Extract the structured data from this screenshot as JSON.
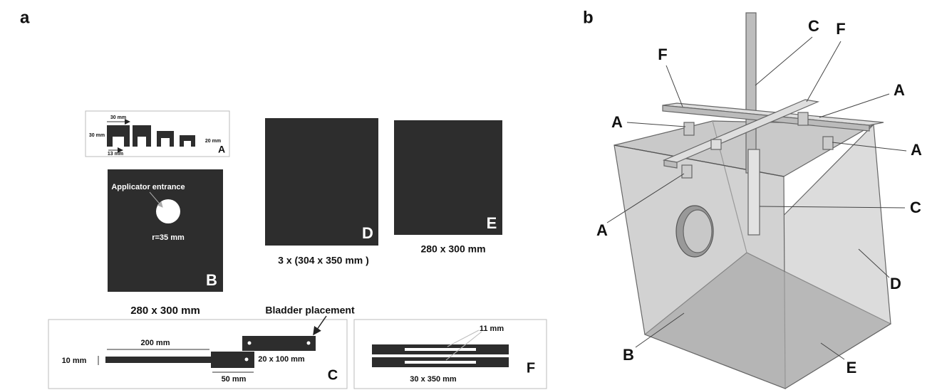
{
  "panel_a": {
    "label": "a",
    "part_a": {
      "dims": [
        "30 mm",
        "30 mm",
        "20 mm",
        "13 mm"
      ],
      "letter": "A"
    },
    "part_b": {
      "annotation": "Applicator entrance",
      "radius": "r=35 mm",
      "letter": "B",
      "size": "280 x 300 mm"
    },
    "part_d": {
      "letter": "D",
      "size": "3 x (304 x 350 mm )"
    },
    "part_e": {
      "letter": "E",
      "size": "280 x 300 mm"
    },
    "part_c": {
      "annotation": "Bladder placement",
      "dims": [
        "200 mm",
        "10 mm",
        "20 x 100 mm",
        "50 mm"
      ],
      "letter": "C"
    },
    "part_f": {
      "dims": [
        "11 mm",
        "30 x 350 mm"
      ],
      "letter": "F"
    }
  },
  "panel_b": {
    "label": "b",
    "labels": [
      "F",
      "C",
      "F",
      "A",
      "A",
      "A",
      "A",
      "C",
      "D",
      "B",
      "E"
    ]
  }
}
